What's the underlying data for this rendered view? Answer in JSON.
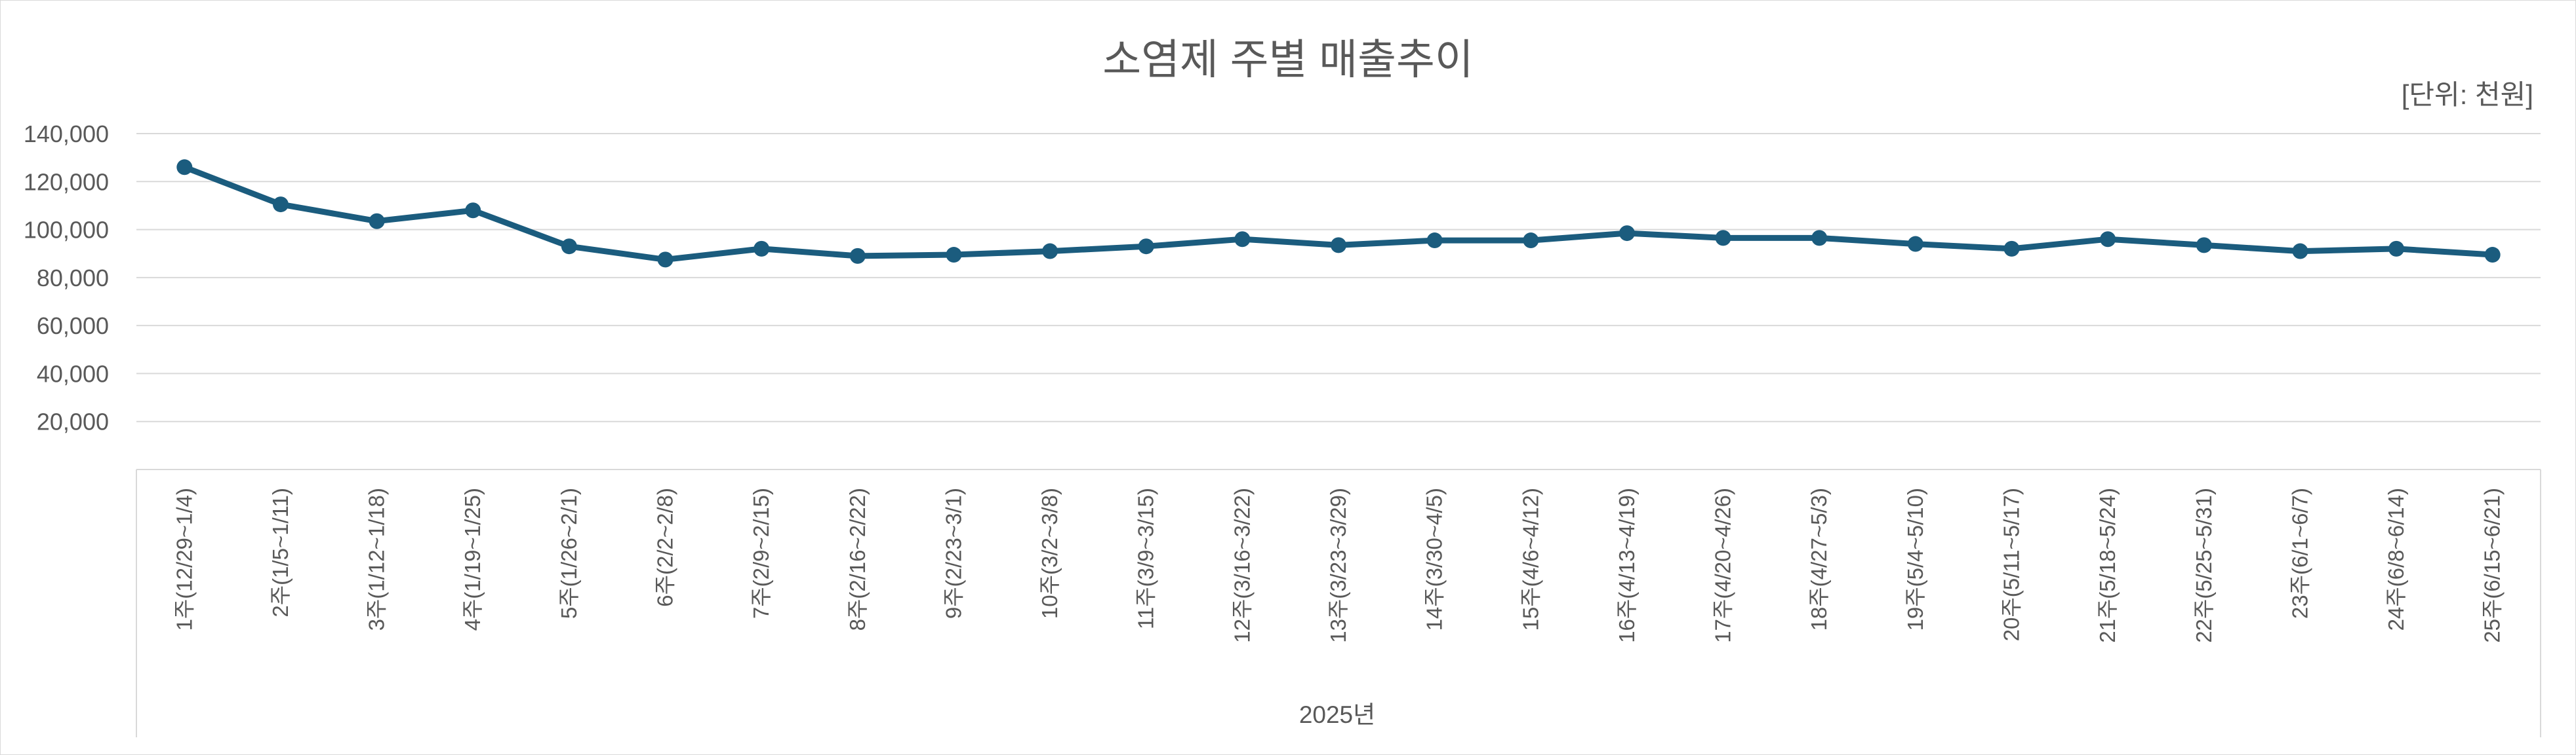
{
  "chart_data": {
    "type": "line",
    "title": "소염제 주별 매출추이",
    "unit_label": "[단위: 천원]",
    "xlabel": "2025년",
    "ylabel": "",
    "ylim": [
      0,
      140000
    ],
    "yticks": [
      20000,
      40000,
      60000,
      80000,
      100000,
      120000,
      140000
    ],
    "ytick_labels": [
      "20,000",
      "40,000",
      "60,000",
      "80,000",
      "100,000",
      "120,000",
      "140,000"
    ],
    "grid": true,
    "legend": "none",
    "colors": {
      "line": "#1b5c7e",
      "grid": "#d9d9d9",
      "text": "#595959"
    },
    "categories": [
      "1주(12/29~1/4)",
      "2주(1/5~1/11)",
      "3주(1/12~1/18)",
      "4주(1/19~1/25)",
      "5주(1/26~2/1)",
      "6주(2/2~2/8)",
      "7주(2/9~2/15)",
      "8주(2/16~2/22)",
      "9주(2/23~3/1)",
      "10주(3/2~3/8)",
      "11주(3/9~3/15)",
      "12주(3/16~3/22)",
      "13주(3/23~3/29)",
      "14주(3/30~4/5)",
      "15주(4/6~4/12)",
      "16주(4/13~4/19)",
      "17주(4/20~4/26)",
      "18주(4/27~5/3)",
      "19주(5/4~5/10)",
      "20주(5/11~5/17)",
      "21주(5/18~5/24)",
      "22주(5/25~5/31)",
      "23주(6/1~6/7)",
      "24주(6/8~6/14)",
      "25주(6/15~6/21)"
    ],
    "series": [
      {
        "values": [
          126000,
          110500,
          103500,
          108000,
          93000,
          87500,
          92000,
          89000,
          89500,
          91000,
          93000,
          96000,
          93500,
          95500,
          95500,
          98500,
          96500,
          96500,
          94000,
          92000,
          96000,
          93500,
          91000,
          92000,
          89500
        ]
      }
    ]
  }
}
